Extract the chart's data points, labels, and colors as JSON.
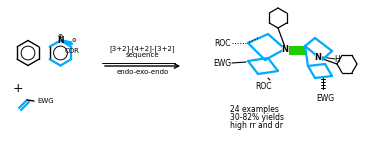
{
  "background_color": "#ffffff",
  "cyan_color": "#00AAFF",
  "green_color": "#22CC00",
  "black_color": "#000000",
  "reaction_text_line1": "[3+2]-[4+2]-[3+2]",
  "reaction_text_line2": "sequence",
  "reaction_text_line3": "endo-exo-endo",
  "result_text_line1": "24 examples",
  "result_text_line2": "30-82% yields",
  "result_text_line3": "high rr and dr",
  "figsize": [
    3.78,
    1.46
  ],
  "dpi": 100
}
